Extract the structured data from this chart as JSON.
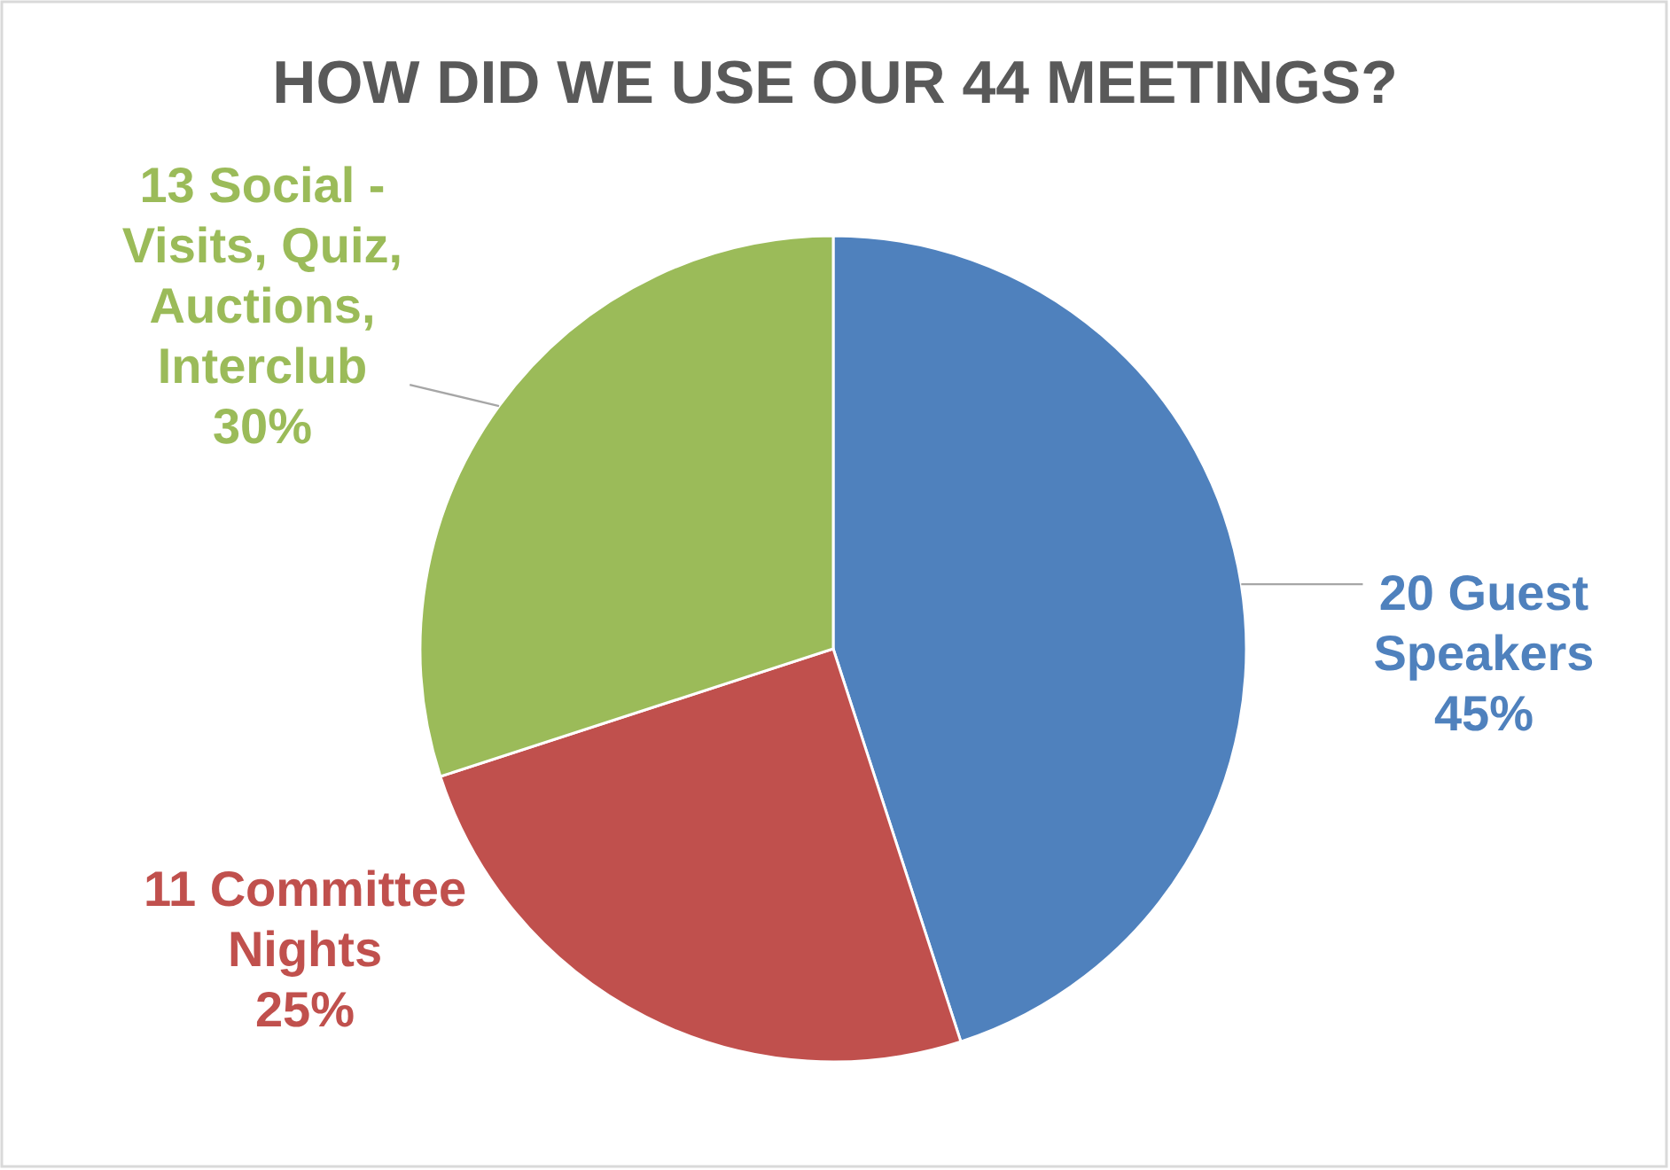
{
  "chart_data": {
    "type": "pie",
    "title": "HOW DID WE USE OUR 44 MEETINGS?",
    "categories": [
      "20 Guest Speakers",
      "11 Committee Nights",
      "13 Social - Visits, Quiz, Auctions, Interclub"
    ],
    "values": [
      45,
      25,
      30
    ],
    "colors": [
      "#4f81bd",
      "#c0504d",
      "#9bbb59"
    ],
    "value_labels": [
      "45%",
      "25%",
      "30%"
    ]
  }
}
